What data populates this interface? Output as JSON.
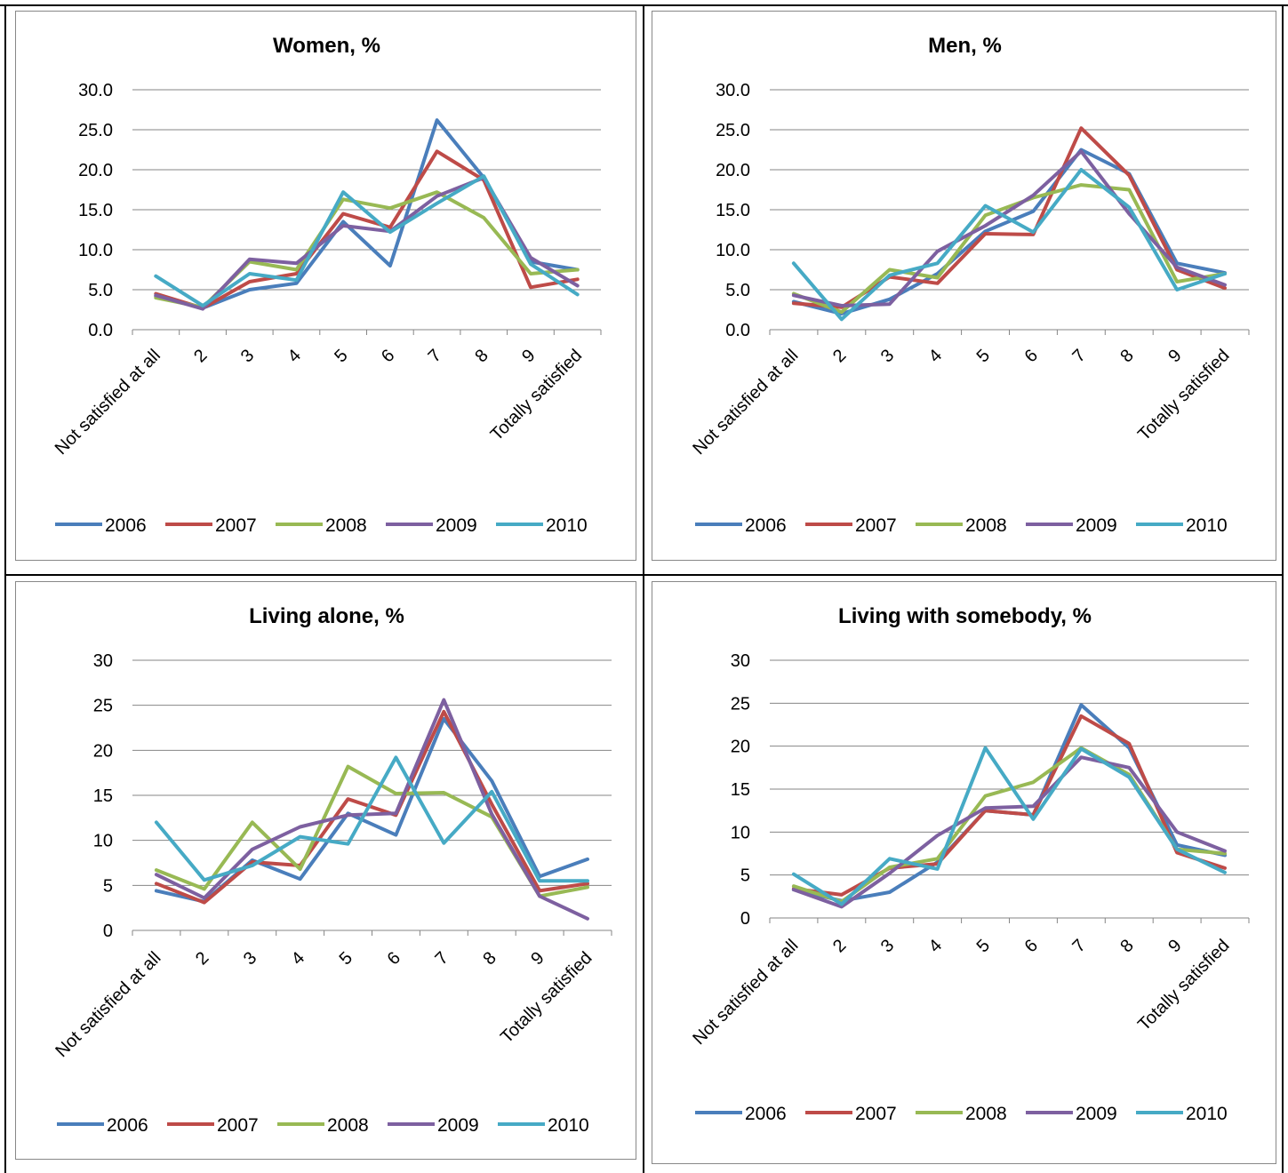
{
  "colors": {
    "2006": "#4a7ebb",
    "2007": "#be4b48",
    "2008": "#98b954",
    "2009": "#7d60a0",
    "2010": "#46aac5"
  },
  "chart_data": [
    {
      "type": "line",
      "title": "Women, %",
      "categories": [
        "Not satisfied at all",
        "2",
        "3",
        "4",
        "5",
        "6",
        "7",
        "8",
        "9",
        "Totally satisfied"
      ],
      "ylim": [
        0,
        30
      ],
      "yticks": [
        "0.0",
        "5.0",
        "10.0",
        "15.0",
        "20.0",
        "25.0",
        "30.0"
      ],
      "grid": true,
      "legend": "bottom",
      "series": [
        {
          "name": "2006",
          "values": [
            4.2,
            2.7,
            5.0,
            5.8,
            13.5,
            8.0,
            26.2,
            19.0,
            8.5,
            7.5
          ]
        },
        {
          "name": "2007",
          "values": [
            4.5,
            2.7,
            6.0,
            7.0,
            14.5,
            12.8,
            22.3,
            18.7,
            5.3,
            6.3
          ]
        },
        {
          "name": "2008",
          "values": [
            4.0,
            2.8,
            8.5,
            7.5,
            16.3,
            15.2,
            17.2,
            14.0,
            7.0,
            7.5
          ]
        },
        {
          "name": "2009",
          "values": [
            4.3,
            2.6,
            8.8,
            8.3,
            13.0,
            12.3,
            16.7,
            19.0,
            9.0,
            5.5
          ]
        },
        {
          "name": "2010",
          "values": [
            6.7,
            3.0,
            7.0,
            6.2,
            17.2,
            12.2,
            15.8,
            19.2,
            8.2,
            4.4
          ]
        }
      ]
    },
    {
      "type": "line",
      "title": "Men, %",
      "categories": [
        "Not satisfied at all",
        "2",
        "3",
        "4",
        "5",
        "6",
        "7",
        "8",
        "9",
        "Totally satisfied"
      ],
      "ylim": [
        0,
        30
      ],
      "yticks": [
        "0.0",
        "5.0",
        "10.0",
        "15.0",
        "20.0",
        "25.0",
        "30.0"
      ],
      "grid": true,
      "legend": "bottom",
      "series": [
        {
          "name": "2006",
          "values": [
            3.5,
            2.0,
            3.8,
            7.0,
            12.3,
            14.8,
            22.5,
            19.5,
            8.3,
            7.1
          ]
        },
        {
          "name": "2007",
          "values": [
            3.3,
            2.8,
            6.6,
            5.8,
            12.0,
            11.9,
            25.2,
            19.3,
            7.5,
            5.2
          ]
        },
        {
          "name": "2008",
          "values": [
            4.5,
            2.2,
            7.5,
            6.5,
            14.3,
            16.5,
            18.1,
            17.5,
            6.0,
            7.0
          ]
        },
        {
          "name": "2009",
          "values": [
            4.3,
            3.0,
            3.2,
            9.8,
            13.0,
            16.8,
            22.3,
            14.5,
            7.8,
            5.6
          ]
        },
        {
          "name": "2010",
          "values": [
            8.3,
            1.3,
            6.8,
            8.3,
            15.5,
            12.2,
            20.0,
            15.3,
            5.0,
            7.0
          ]
        }
      ]
    },
    {
      "type": "line",
      "title": "Living alone, %",
      "categories": [
        "Not satisfied at all",
        "2",
        "3",
        "4",
        "5",
        "6",
        "7",
        "8",
        "9",
        "Totally satisfied"
      ],
      "ylim": [
        0,
        30
      ],
      "yticks": [
        "0",
        "5",
        "10",
        "15",
        "20",
        "25",
        "30"
      ],
      "grid": true,
      "legend": "bottom",
      "series": [
        {
          "name": "2006",
          "values": [
            4.4,
            3.2,
            7.8,
            5.7,
            13.0,
            10.6,
            23.5,
            16.6,
            6.0,
            7.9
          ]
        },
        {
          "name": "2007",
          "values": [
            5.2,
            3.1,
            7.6,
            7.2,
            14.6,
            12.8,
            24.3,
            14.0,
            4.4,
            5.2
          ]
        },
        {
          "name": "2008",
          "values": [
            6.7,
            4.6,
            12.0,
            6.8,
            18.2,
            15.2,
            15.3,
            12.6,
            3.8,
            4.8
          ]
        },
        {
          "name": "2009",
          "values": [
            6.2,
            3.6,
            9.0,
            11.5,
            12.8,
            13.0,
            25.6,
            12.9,
            3.8,
            1.3
          ]
        },
        {
          "name": "2010",
          "values": [
            12.0,
            5.6,
            7.2,
            10.4,
            9.6,
            19.2,
            9.7,
            15.4,
            5.5,
            5.5
          ]
        }
      ]
    },
    {
      "type": "line",
      "title": "Living with somebody, %",
      "categories": [
        "Not satisfied at all",
        "2",
        "3",
        "4",
        "5",
        "6",
        "7",
        "8",
        "9",
        "Totally satisfied"
      ],
      "ylim": [
        0,
        30
      ],
      "yticks": [
        "0",
        "5",
        "10",
        "15",
        "20",
        "25",
        "30"
      ],
      "grid": true,
      "legend": "bottom",
      "series": [
        {
          "name": "2006",
          "values": [
            3.3,
            2.0,
            3.0,
            6.5,
            12.5,
            12.0,
            24.8,
            19.8,
            8.5,
            7.3
          ]
        },
        {
          "name": "2007",
          "values": [
            3.4,
            2.7,
            5.8,
            6.3,
            12.5,
            12.0,
            23.5,
            20.3,
            7.6,
            5.8
          ]
        },
        {
          "name": "2008",
          "values": [
            3.7,
            1.9,
            5.9,
            6.9,
            14.2,
            15.8,
            19.8,
            16.7,
            8.0,
            7.5
          ]
        },
        {
          "name": "2009",
          "values": [
            3.3,
            1.3,
            5.2,
            9.6,
            12.8,
            13.0,
            18.7,
            17.5,
            10.0,
            7.8
          ]
        },
        {
          "name": "2010",
          "values": [
            5.1,
            1.6,
            6.9,
            5.7,
            19.8,
            11.5,
            19.7,
            16.4,
            8.0,
            5.3
          ]
        }
      ]
    }
  ]
}
